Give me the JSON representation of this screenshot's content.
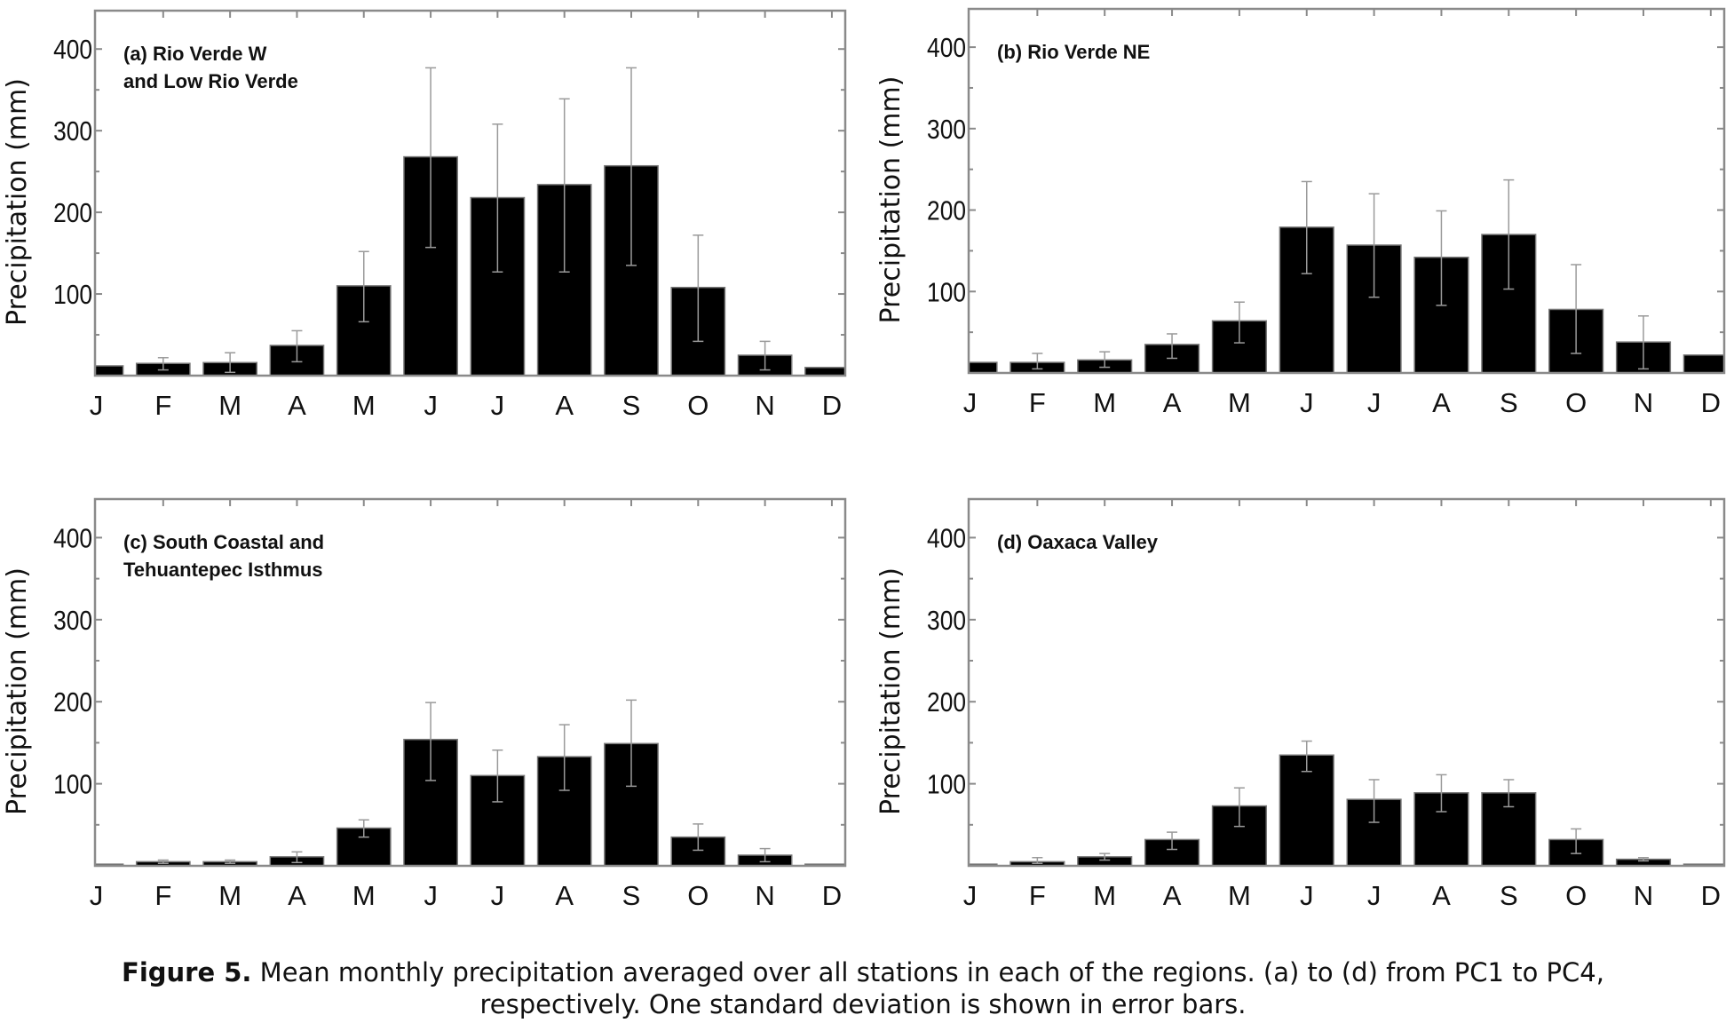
{
  "chart_data": [
    {
      "type": "bar",
      "panel_label": [
        "(a) Rio Verde W",
        "and Low Rio Verde"
      ],
      "ylabel": "Precipitation (mm)",
      "xlabel": "",
      "categories": [
        "J",
        "F",
        "M",
        "A",
        "M",
        "J",
        "J",
        "A",
        "S",
        "O",
        "N",
        "D"
      ],
      "values": [
        12,
        15,
        16,
        37,
        110,
        268,
        218,
        234,
        257,
        108,
        25,
        10
      ],
      "error_high": [
        null,
        22,
        28,
        55,
        152,
        377,
        308,
        339,
        377,
        172,
        42,
        null
      ],
      "error_low": [
        null,
        7,
        4,
        17,
        66,
        157,
        127,
        127,
        135,
        42,
        7,
        null
      ],
      "yticks": [
        100,
        200,
        300,
        400
      ],
      "ylim": [
        0,
        447
      ]
    },
    {
      "type": "bar",
      "panel_label": [
        "(b) Rio Verde NE"
      ],
      "ylabel": "Precipitation (mm)",
      "xlabel": "",
      "categories": [
        "J",
        "F",
        "M",
        "A",
        "M",
        "J",
        "J",
        "A",
        "S",
        "O",
        "N",
        "D"
      ],
      "values": [
        13,
        13,
        16,
        35,
        64,
        179,
        157,
        142,
        170,
        78,
        38,
        22
      ],
      "error_high": [
        null,
        24,
        26,
        48,
        87,
        235,
        220,
        199,
        237,
        133,
        70,
        null
      ],
      "error_low": [
        null,
        5,
        7,
        18,
        37,
        122,
        93,
        83,
        103,
        24,
        5,
        null
      ],
      "yticks": [
        100,
        200,
        300,
        400
      ],
      "ylim": [
        0,
        447
      ]
    },
    {
      "type": "bar",
      "panel_label": [
        "(c) South Coastal and",
        "Tehuantepec Isthmus"
      ],
      "ylabel": "Precipitation (mm)",
      "xlabel": "",
      "categories": [
        "J",
        "F",
        "M",
        "A",
        "M",
        "J",
        "J",
        "A",
        "S",
        "O",
        "N",
        "D"
      ],
      "values": [
        2,
        5,
        5,
        11,
        46,
        154,
        110,
        133,
        149,
        35,
        13,
        2
      ],
      "error_high": [
        null,
        7,
        7,
        17,
        56,
        199,
        141,
        172,
        202,
        51,
        21,
        null
      ],
      "error_low": [
        null,
        3,
        3,
        4,
        35,
        104,
        78,
        92,
        97,
        19,
        5,
        null
      ],
      "yticks": [
        100,
        200,
        300,
        400
      ],
      "ylim": [
        0,
        447
      ]
    },
    {
      "type": "bar",
      "panel_label": [
        "(d) Oaxaca Valley"
      ],
      "ylabel": "Precipitation (mm)",
      "xlabel": "",
      "categories": [
        "J",
        "F",
        "M",
        "A",
        "M",
        "J",
        "J",
        "A",
        "S",
        "O",
        "N",
        "D"
      ],
      "values": [
        2,
        5,
        11,
        32,
        73,
        135,
        81,
        89,
        89,
        32,
        8,
        2
      ],
      "error_high": [
        null,
        10,
        15,
        41,
        95,
        152,
        105,
        111,
        105,
        45,
        10,
        null
      ],
      "error_low": [
        null,
        3,
        7,
        20,
        48,
        115,
        53,
        66,
        72,
        15,
        6,
        null
      ],
      "yticks": [
        100,
        200,
        300,
        400
      ],
      "ylim": [
        0,
        447
      ]
    }
  ],
  "colors": {
    "bar": "#000000",
    "bar_edge": "#777777",
    "error_bar": "#9a9a9a",
    "axis": "#8a8a8a"
  },
  "caption": {
    "label": "Figure 5.",
    "line1": " Mean monthly precipitation averaged over all stations in each of the regions. (a) to (d) from PC1 to PC4,",
    "line2": "respectively. One standard deviation is shown in error bars."
  }
}
